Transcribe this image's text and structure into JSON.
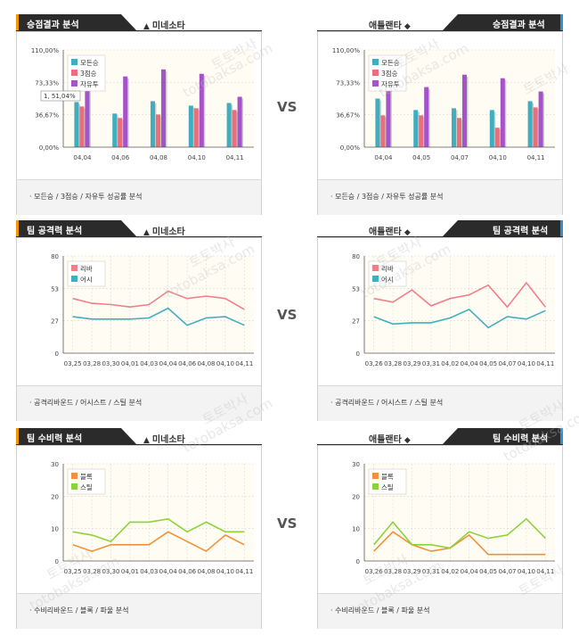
{
  "colors": {
    "header_dark": "#2b2b2b",
    "accent_orange": "#f39800",
    "accent_blue": "#2e8fd7",
    "plot_bg": "#fffdf3",
    "axis": "#555555",
    "grid": "#d9d9d9"
  },
  "vs_label": "VS",
  "watermarks": {
    "main": "토토박사",
    "sub": "totobaksa.com"
  },
  "panels": [
    {
      "title": "승점결과 분석",
      "team": "미네소타",
      "team_icon": "ship-icon",
      "footer": "· 모든승 / 3점승 / 자유투 성공률 분석",
      "chart_data": {
        "type": "bar",
        "categories": [
          "04,04",
          "04,06",
          "04,08",
          "04,10",
          "04,11"
        ],
        "ytick_labels": [
          "0,00%",
          "36,67%",
          "73,33%",
          "110,00%"
        ],
        "ylim": [
          0,
          110
        ],
        "series": [
          {
            "name": "모든승",
            "color": "#41aebf",
            "values": [
              51.04,
              38,
              52,
              47,
              50
            ]
          },
          {
            "name": "3점승",
            "color": "#ea6f7c",
            "values": [
              46,
              33,
              37,
              44,
              42
            ]
          },
          {
            "name": "자유투",
            "color": "#a553c9",
            "values": [
              78,
              80,
              88,
              83,
              57
            ]
          }
        ],
        "tooltip": "1, 51,04%"
      }
    },
    {
      "title": "승점결과 분석",
      "team": "애틀랜타",
      "team_icon": "hawk-icon",
      "footer": "· 모든승 / 3점승 / 자유투 성공률 분석",
      "chart_data": {
        "type": "bar",
        "categories": [
          "04,04",
          "04,05",
          "04,07",
          "04,10",
          "04,11"
        ],
        "ytick_labels": [
          "0,00%",
          "36,67%",
          "73,33%",
          "110,00%"
        ],
        "ylim": [
          0,
          110
        ],
        "series": [
          {
            "name": "모든승",
            "color": "#41aebf",
            "values": [
              55,
              42,
              44,
              42,
              52
            ]
          },
          {
            "name": "3점승",
            "color": "#ea6f7c",
            "values": [
              36,
              36,
              33,
              22,
              45
            ]
          },
          {
            "name": "자유투",
            "color": "#a553c9",
            "values": [
              84,
              68,
              82,
              78,
              63
            ]
          }
        ]
      }
    },
    {
      "title": "팀 공격력 분석",
      "team": "미네소타",
      "team_icon": "ship-icon",
      "footer": "· 공격리바운드 / 어시스트 / 스틸 분석",
      "chart_data": {
        "type": "line",
        "categories": [
          "03,25",
          "03,28",
          "03,30",
          "04,01",
          "04,03",
          "04,04",
          "04,06",
          "04,08",
          "04,10",
          "04,11"
        ],
        "ytick_labels": [
          "0",
          "27",
          "53",
          "80"
        ],
        "ylim": [
          0,
          80
        ],
        "series": [
          {
            "name": "리바",
            "color": "#f07f8a",
            "values": [
              45,
              41,
              40,
              38,
              40,
              51,
              45,
              47,
              45,
              36
            ]
          },
          {
            "name": "어시",
            "color": "#41aebf",
            "values": [
              30,
              28,
              28,
              28,
              29,
              37,
              23,
              29,
              30,
              23
            ]
          }
        ]
      }
    },
    {
      "title": "팀 공격력 분석",
      "team": "애틀랜타",
      "team_icon": "hawk-icon",
      "footer": "· 공격리바운드 / 어시스트 / 스틸 분석",
      "chart_data": {
        "type": "line",
        "categories": [
          "03,26",
          "03,28",
          "03,29",
          "03,31",
          "04,02",
          "04,04",
          "04,05",
          "04,07",
          "04,10",
          "04,11"
        ],
        "ytick_labels": [
          "0",
          "27",
          "53",
          "80"
        ],
        "ylim": [
          0,
          80
        ],
        "series": [
          {
            "name": "리바",
            "color": "#f07f8a",
            "values": [
              45,
              42,
              52,
              39,
              45,
              48,
              56,
              38,
              58,
              38
            ]
          },
          {
            "name": "어시",
            "color": "#41aebf",
            "values": [
              30,
              24,
              25,
              25,
              29,
              36,
              21,
              30,
              28,
              35
            ]
          }
        ]
      }
    },
    {
      "title": "팀 수비력 분석",
      "team": "미네소타",
      "team_icon": "ship-icon",
      "footer": "· 수비리바운드 / 블록 / 파울 분석",
      "chart_data": {
        "type": "line",
        "categories": [
          "03,25",
          "03,28",
          "03,30",
          "04,01",
          "04,03",
          "04,04",
          "04,06",
          "04,08",
          "04,10",
          "04,11"
        ],
        "ytick_labels": [
          "0",
          "10",
          "20",
          "30"
        ],
        "ylim": [
          0,
          30
        ],
        "series": [
          {
            "name": "블록",
            "color": "#f2913a",
            "values": [
              5,
              3,
              5,
              5,
              5,
              9,
              6,
              3,
              8,
              5
            ]
          },
          {
            "name": "스틸",
            "color": "#8fd13a",
            "values": [
              9,
              8,
              6,
              12,
              12,
              13,
              9,
              12,
              9,
              9
            ]
          }
        ]
      }
    },
    {
      "title": "팀 수비력 분석",
      "team": "애틀랜타",
      "team_icon": "hawk-icon",
      "footer": "· 수비리바운드 / 블록 / 파울 분석",
      "chart_data": {
        "type": "line",
        "categories": [
          "03,26",
          "03,28",
          "03,29",
          "03,31",
          "04,02",
          "04,04",
          "04,05",
          "04,07",
          "04,10",
          "04,11"
        ],
        "ytick_labels": [
          "0",
          "10",
          "20",
          "30"
        ],
        "ylim": [
          0,
          30
        ],
        "series": [
          {
            "name": "블록",
            "color": "#f2913a",
            "values": [
              3,
              9,
              5,
              3,
              4,
              8,
              2,
              2,
              2,
              2
            ]
          },
          {
            "name": "스틸",
            "color": "#8fd13a",
            "values": [
              5,
              12,
              5,
              5,
              4,
              9,
              7,
              8,
              13,
              7
            ]
          }
        ]
      }
    }
  ]
}
